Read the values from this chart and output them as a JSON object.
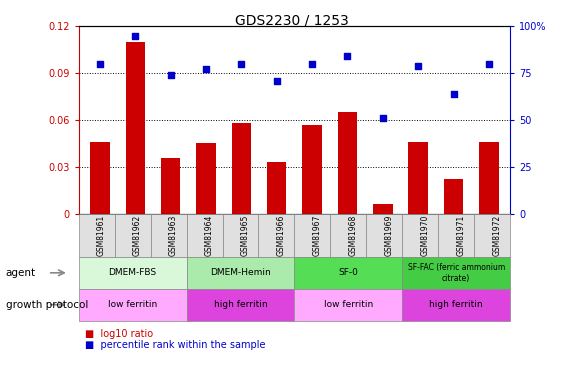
{
  "title": "GDS2230 / 1253",
  "samples": [
    "GSM81961",
    "GSM81962",
    "GSM81963",
    "GSM81964",
    "GSM81965",
    "GSM81966",
    "GSM81967",
    "GSM81968",
    "GSM81969",
    "GSM81970",
    "GSM81971",
    "GSM81972"
  ],
  "log10_ratio": [
    0.046,
    0.11,
    0.036,
    0.045,
    0.058,
    0.033,
    0.057,
    0.065,
    0.006,
    0.046,
    0.022,
    0.046
  ],
  "percentile_rank": [
    80,
    95,
    74,
    77,
    80,
    71,
    80,
    84,
    51,
    79,
    64,
    80
  ],
  "ylim_left": [
    0,
    0.12
  ],
  "ylim_right": [
    0,
    100
  ],
  "yticks_left": [
    0,
    0.03,
    0.06,
    0.09,
    0.12
  ],
  "yticks_right": [
    0,
    25,
    50,
    75,
    100
  ],
  "ytick_labels_left": [
    "0",
    "0.03",
    "0.06",
    "0.09",
    "0.12"
  ],
  "ytick_labels_right": [
    "0",
    "25",
    "50",
    "75",
    "100%"
  ],
  "bar_color": "#cc0000",
  "dot_color": "#0000cc",
  "agent_groups": [
    {
      "label": "DMEM-FBS",
      "start": 0,
      "end": 3,
      "color": "#d9f7d9"
    },
    {
      "label": "DMEM-Hemin",
      "start": 3,
      "end": 6,
      "color": "#aaeaaa"
    },
    {
      "label": "SF-0",
      "start": 6,
      "end": 9,
      "color": "#55dd55"
    },
    {
      "label": "SF-FAC (ferric ammonium\ncitrate)",
      "start": 9,
      "end": 12,
      "color": "#44cc44"
    }
  ],
  "growth_groups": [
    {
      "label": "low ferritin",
      "start": 0,
      "end": 3,
      "color": "#ffaaff"
    },
    {
      "label": "high ferritin",
      "start": 3,
      "end": 6,
      "color": "#dd44dd"
    },
    {
      "label": "low ferritin",
      "start": 6,
      "end": 9,
      "color": "#ffaaff"
    },
    {
      "label": "high ferritin",
      "start": 9,
      "end": 12,
      "color": "#dd44dd"
    }
  ],
  "legend_bar_label": "log10 ratio",
  "legend_dot_label": "percentile rank within the sample",
  "grid_yticks": [
    0.03,
    0.06,
    0.09
  ]
}
